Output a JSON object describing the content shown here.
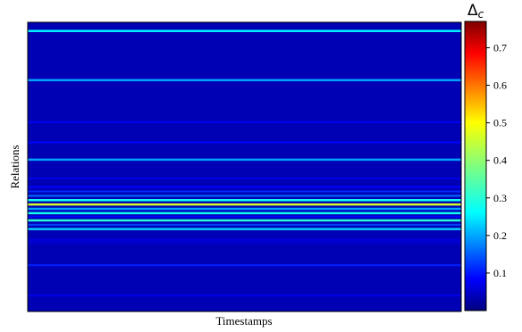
{
  "chart_data": {
    "type": "heatmap",
    "title": "",
    "xlabel": "Timestamps",
    "ylabel": "Relations",
    "x_ticks": [],
    "y_ticks": [],
    "colormap": "jet",
    "colorbar": {
      "title_main": "Δ",
      "title_sub": "c",
      "range": [
        0.0,
        0.77
      ],
      "ticks": [
        0.1,
        0.2,
        0.3,
        0.4,
        0.5,
        0.6,
        0.7
      ],
      "tick_labels": [
        "0.1",
        "0.2",
        "0.3",
        "0.4",
        "0.5",
        "0.6",
        "0.7"
      ]
    },
    "background_value": 0.04,
    "rows_top_to_bottom_fraction_note": "",
    "bands": [
      {
        "row": 0.03,
        "value": 0.28
      },
      {
        "row": 0.2,
        "value": 0.22
      },
      {
        "row": 0.345,
        "value": 0.09
      },
      {
        "row": 0.415,
        "value": 0.1
      },
      {
        "row": 0.475,
        "value": 0.22
      },
      {
        "row": 0.54,
        "value": 0.08
      },
      {
        "row": 0.57,
        "value": 0.1
      },
      {
        "row": 0.585,
        "value": 0.13
      },
      {
        "row": 0.6,
        "value": 0.18
      },
      {
        "row": 0.615,
        "value": 0.3
      },
      {
        "row": 0.63,
        "value": 0.45
      },
      {
        "row": 0.645,
        "value": 0.22
      },
      {
        "row": 0.66,
        "value": 0.3
      },
      {
        "row": 0.672,
        "value": 0.1
      },
      {
        "row": 0.685,
        "value": 0.32
      },
      {
        "row": 0.7,
        "value": 0.15
      },
      {
        "row": 0.715,
        "value": 0.25
      },
      {
        "row": 0.75,
        "value": 0.06
      },
      {
        "row": 0.755,
        "value": 0.07
      },
      {
        "row": 0.765,
        "value": 0.06
      },
      {
        "row": 0.84,
        "value": 0.12
      },
      {
        "row": 0.945,
        "value": 0.08
      }
    ]
  }
}
